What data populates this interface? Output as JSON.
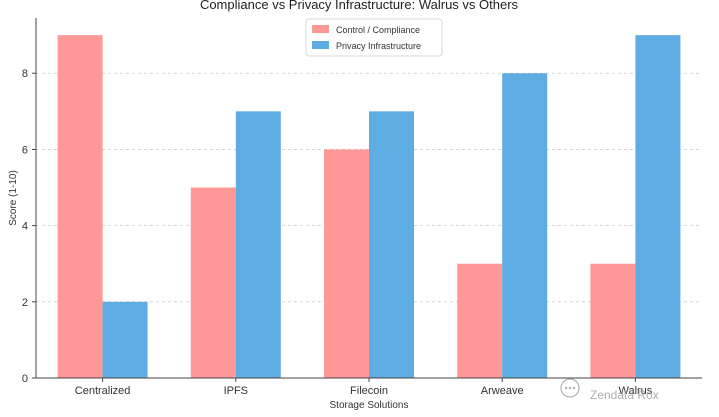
{
  "chart_data": {
    "type": "bar",
    "title": "Compliance vs Privacy Infrastructure: Walrus vs Others",
    "xlabel": "Storage Solutions",
    "ylabel": "Score (1-10)",
    "categories": [
      "Centralized",
      "IPFS",
      "Filecoin",
      "Arweave",
      "Walrus"
    ],
    "series": [
      {
        "name": "Control / Compliance",
        "values": [
          9,
          5,
          6,
          3,
          3
        ],
        "color": "#ff9896"
      },
      {
        "name": "Privacy Infrastructure",
        "values": [
          2,
          7,
          7,
          8,
          9
        ],
        "color": "#5dade2"
      }
    ],
    "ylim": [
      0,
      9.45
    ],
    "yticks": [
      0,
      2,
      4,
      6,
      8
    ],
    "grid": true,
    "legend_position": "top-center"
  },
  "watermark": {
    "text": "Zendata Rox",
    "icon": "chat-bubble-icon"
  }
}
